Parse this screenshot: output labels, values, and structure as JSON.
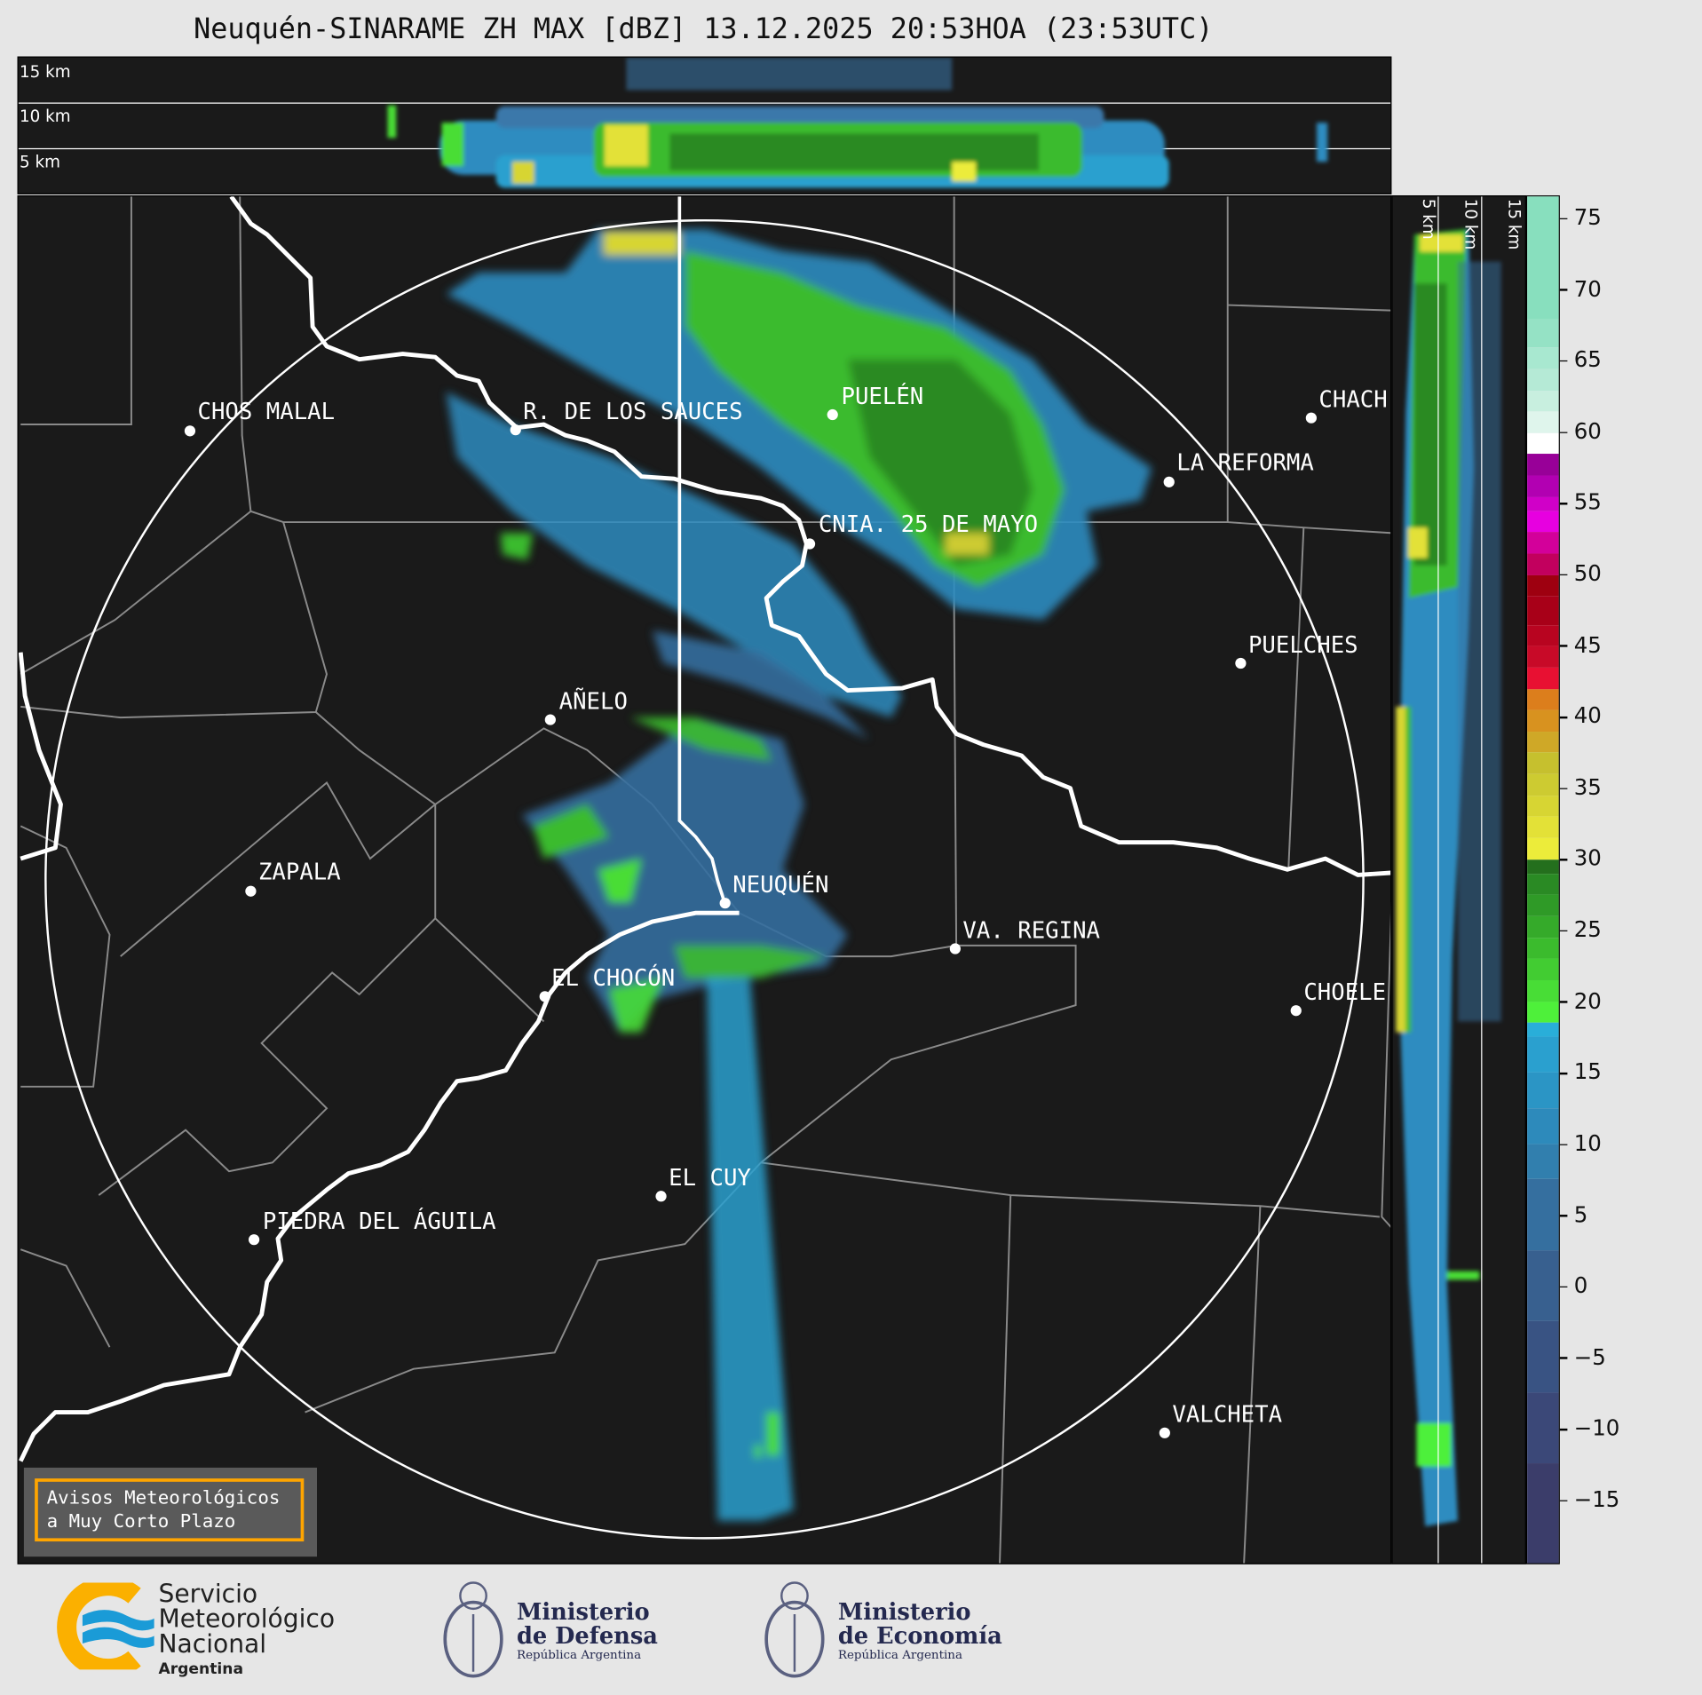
{
  "title": "Neuquén-SINARAME ZH MAX [dBZ] 13.12.2025 20:53HOA (23:53UTC)",
  "top_panel": {
    "levels": [
      "15 km",
      "10 km",
      "5 km"
    ]
  },
  "right_panel": {
    "levels": [
      "5 km",
      "10 km",
      "15 km"
    ]
  },
  "cities": [
    {
      "name": "CHOS MALAL"
    },
    {
      "name": "R. DE LOS SAUCES"
    },
    {
      "name": "PUELÉN"
    },
    {
      "name": "CHACH"
    },
    {
      "name": "LA REFORMA"
    },
    {
      "name": "CNIA. 25 DE MAYO"
    },
    {
      "name": "PUELCHES"
    },
    {
      "name": "AÑELO"
    },
    {
      "name": "ZAPALA"
    },
    {
      "name": "NEUQUÉN"
    },
    {
      "name": "VA. REGINA"
    },
    {
      "name": "EL CHOCÓN"
    },
    {
      "name": "CHOELE"
    },
    {
      "name": "EL CUY"
    },
    {
      "name": "PIEDRA DEL ÁGUILA"
    },
    {
      "name": "VALCHETA"
    }
  ],
  "colorbar": {
    "unit": "dBZ",
    "range": [
      -19.5,
      76.6
    ],
    "ticks": [
      "75",
      "70",
      "65",
      "60",
      "55",
      "50",
      "45",
      "40",
      "35",
      "30",
      "25",
      "20",
      "15",
      "10",
      "5",
      "0",
      "−5",
      "−10",
      "−15"
    ],
    "bins": [
      [
        -19.5,
        "#3b3d6a"
      ],
      [
        -12.5,
        "#3b4878"
      ],
      [
        -7.5,
        "#395383"
      ],
      [
        -2.5,
        "#38608f"
      ],
      [
        2.5,
        "#356f9f"
      ],
      [
        7.5,
        "#317fae"
      ],
      [
        10,
        "#2d8abb"
      ],
      [
        12.5,
        "#2b95c5"
      ],
      [
        15,
        "#2aa0cf"
      ],
      [
        17.5,
        "#29aed9"
      ],
      [
        18.5,
        "#4ef03a"
      ],
      [
        20,
        "#48dd36"
      ],
      [
        21.5,
        "#42cc32"
      ],
      [
        23,
        "#3bbb2d"
      ],
      [
        24.5,
        "#35aa2a"
      ],
      [
        26,
        "#2f9a27"
      ],
      [
        27.5,
        "#2a8a24"
      ],
      [
        29,
        "#246f1d"
      ],
      [
        30,
        "#ecec3a"
      ],
      [
        31.5,
        "#e3e137"
      ],
      [
        33,
        "#d7d533"
      ],
      [
        34.5,
        "#cdcb31"
      ],
      [
        36,
        "#c6c02e"
      ],
      [
        37.5,
        "#cfa827"
      ],
      [
        39,
        "#d8921f"
      ],
      [
        40.5,
        "#dc7e1c"
      ],
      [
        42,
        "#e81032"
      ],
      [
        43.5,
        "#c80a28"
      ],
      [
        45,
        "#b80420"
      ],
      [
        46.5,
        "#a80018"
      ],
      [
        48.5,
        "#9e0010"
      ],
      [
        50,
        "#c2005e"
      ],
      [
        51.5,
        "#d3009a"
      ],
      [
        53,
        "#e700e0"
      ],
      [
        54.5,
        "#d000c8"
      ],
      [
        55.5,
        "#b200b2"
      ],
      [
        57,
        "#980098"
      ],
      [
        58.5,
        "#ffffff"
      ],
      [
        60,
        "#dff5ec"
      ],
      [
        61.5,
        "#c8efdf"
      ],
      [
        63,
        "#b5ead6"
      ],
      [
        64.5,
        "#a8e8d0"
      ],
      [
        66,
        "#95e2c5"
      ],
      [
        68,
        "#88dfbe"
      ]
    ]
  },
  "notice": {
    "line1": "Avisos Meteorológicos",
    "line2": "a Muy Corto Plazo"
  },
  "logos": {
    "smn": [
      "Servicio",
      "Meteorológico",
      "Nacional",
      "Argentina"
    ],
    "defensa": [
      "Ministerio",
      "de Defensa",
      "República Argentina"
    ],
    "economia": [
      "Ministerio",
      "de Economía",
      "República Argentina"
    ]
  }
}
